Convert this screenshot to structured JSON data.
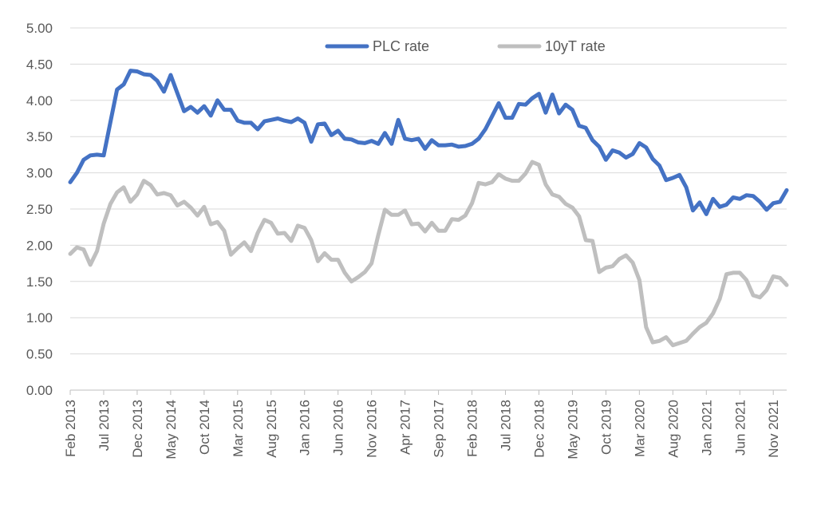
{
  "chart_data": {
    "type": "line",
    "title": "",
    "xlabel": "",
    "ylabel": "",
    "ylim": [
      0,
      5
    ],
    "y_ticks": [
      "0.00",
      "0.50",
      "1.00",
      "1.50",
      "2.00",
      "2.50",
      "3.00",
      "3.50",
      "4.00",
      "4.50",
      "5.00"
    ],
    "x_tick_labels": [
      "Feb 2013",
      "Jul 2013",
      "Dec 2013",
      "May 2014",
      "Oct 2014",
      "Mar 2015",
      "Aug 2015",
      "Jan 2016",
      "Jun 2016",
      "Nov 2016",
      "Apr 2017",
      "Sep 2017",
      "Feb 2018",
      "Jul 2018",
      "Dec 2018",
      "May 2019",
      "Oct 2019",
      "Mar 2020",
      "Aug 2020",
      "Jan 2021",
      "Jun 2021",
      "Nov 2021"
    ],
    "x_tick_step_months": 5,
    "grid": true,
    "legend_position": "top-center",
    "series": [
      {
        "name": "PLC rate",
        "color": "#4472C4",
        "values": [
          2.87,
          3.0,
          3.18,
          3.24,
          3.25,
          3.24,
          3.7,
          4.15,
          4.22,
          4.41,
          4.4,
          4.36,
          4.35,
          4.27,
          4.12,
          4.35,
          4.1,
          3.85,
          3.91,
          3.83,
          3.92,
          3.79,
          4.0,
          3.87,
          3.87,
          3.72,
          3.69,
          3.69,
          3.6,
          3.71,
          3.73,
          3.75,
          3.72,
          3.7,
          3.75,
          3.69,
          3.43,
          3.67,
          3.68,
          3.52,
          3.58,
          3.47,
          3.46,
          3.42,
          3.41,
          3.44,
          3.4,
          3.55,
          3.4,
          3.73,
          3.47,
          3.45,
          3.47,
          3.33,
          3.45,
          3.38,
          3.38,
          3.39,
          3.36,
          3.37,
          3.4,
          3.47,
          3.6,
          3.78,
          3.96,
          3.76,
          3.76,
          3.95,
          3.94,
          4.03,
          4.09,
          3.83,
          4.08,
          3.82,
          3.94,
          3.87,
          3.65,
          3.62,
          3.45,
          3.36,
          3.18,
          3.31,
          3.28,
          3.21,
          3.26,
          3.41,
          3.35,
          3.19,
          3.1,
          2.9,
          2.93,
          2.97,
          2.8,
          2.48,
          2.59,
          2.43,
          2.64,
          2.53,
          2.56,
          2.66,
          2.64,
          2.69,
          2.68,
          2.6,
          2.49,
          2.58,
          2.6,
          2.76
        ]
      },
      {
        "name": "10yT rate",
        "color": "#BFBFBF",
        "values": [
          1.88,
          1.97,
          1.94,
          1.73,
          1.92,
          2.3,
          2.57,
          2.73,
          2.8,
          2.6,
          2.7,
          2.89,
          2.83,
          2.7,
          2.72,
          2.69,
          2.55,
          2.6,
          2.52,
          2.41,
          2.53,
          2.29,
          2.32,
          2.2,
          1.87,
          1.96,
          2.04,
          1.92,
          2.17,
          2.35,
          2.31,
          2.16,
          2.17,
          2.06,
          2.27,
          2.24,
          2.07,
          1.78,
          1.89,
          1.8,
          1.8,
          1.62,
          1.5,
          1.56,
          1.63,
          1.75,
          2.14,
          2.49,
          2.42,
          2.42,
          2.48,
          2.29,
          2.3,
          2.19,
          2.31,
          2.2,
          2.2,
          2.36,
          2.35,
          2.41,
          2.58,
          2.86,
          2.84,
          2.87,
          2.98,
          2.92,
          2.89,
          2.89,
          2.99,
          3.15,
          3.11,
          2.84,
          2.7,
          2.67,
          2.57,
          2.52,
          2.4,
          2.07,
          2.06,
          1.63,
          1.69,
          1.71,
          1.81,
          1.86,
          1.76,
          1.52,
          0.87,
          0.66,
          0.68,
          0.73,
          0.62,
          0.65,
          0.68,
          0.78,
          0.87,
          0.93,
          1.06,
          1.26,
          1.6,
          1.62,
          1.62,
          1.52,
          1.31,
          1.28,
          1.38,
          1.57,
          1.55,
          1.45
        ]
      }
    ]
  }
}
